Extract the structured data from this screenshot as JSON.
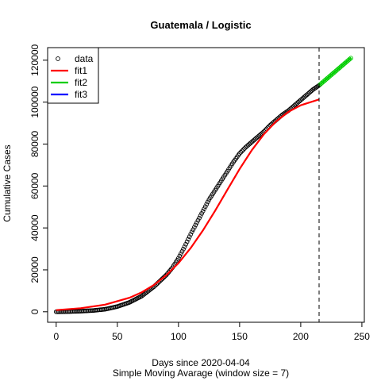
{
  "chart_data": {
    "type": "line",
    "title": "Guatemala / Logistic",
    "xlabel": "Days since 2020-04-04",
    "subtitle": "Simple Moving Avarage (window size = 7)",
    "ylabel": "Cumulative Cases",
    "xlim": [
      -7,
      252
    ],
    "ylim": [
      -5000,
      126000
    ],
    "xticks": [
      0,
      50,
      100,
      150,
      200,
      250
    ],
    "yticks": [
      0,
      20000,
      40000,
      60000,
      80000,
      100000,
      120000
    ],
    "split_day": 215,
    "legend": {
      "position": "top-left",
      "entries": [
        {
          "label": "data",
          "kind": "point",
          "color": "#000000"
        },
        {
          "label": "fit1",
          "kind": "line",
          "color": "#ff0000"
        },
        {
          "label": "fit2",
          "kind": "line",
          "color": "#00cd00"
        },
        {
          "label": "fit3",
          "kind": "line",
          "color": "#0000ff"
        }
      ]
    },
    "series": [
      {
        "name": "data",
        "kind": "points",
        "color": "#000000",
        "x": [
          0,
          10,
          20,
          30,
          40,
          50,
          60,
          70,
          80,
          90,
          95,
          100,
          105,
          110,
          115,
          120,
          125,
          130,
          135,
          140,
          145,
          150,
          155,
          160,
          165,
          170,
          175,
          180,
          185,
          190,
          195,
          200,
          205,
          210,
          215,
          220,
          225,
          230,
          235,
          241
        ],
        "y": [
          0,
          100,
          300,
          600,
          1200,
          2500,
          4500,
          7500,
          12000,
          17500,
          21000,
          25500,
          31000,
          37000,
          42500,
          48000,
          53500,
          58000,
          62500,
          67000,
          71500,
          75500,
          78500,
          81000,
          83500,
          86000,
          89000,
          91500,
          94000,
          96000,
          98500,
          101000,
          103500,
          106000,
          108000,
          110500,
          113000,
          115500,
          118000,
          121000
        ]
      },
      {
        "name": "fit1",
        "kind": "line",
        "color": "#ff0000",
        "x": [
          0,
          20,
          40,
          60,
          70,
          80,
          90,
          100,
          110,
          120,
          130,
          140,
          150,
          160,
          170,
          180,
          190,
          200,
          215
        ],
        "y": [
          800,
          1700,
          3400,
          6700,
          9300,
          12800,
          17400,
          23200,
          30400,
          38800,
          48200,
          58200,
          68100,
          77100,
          84800,
          90900,
          95400,
          98500,
          101300
        ]
      },
      {
        "name": "fit2",
        "kind": "line",
        "color": "#00cd00",
        "x": [
          215,
          241
        ],
        "y": [
          108000,
          121000
        ]
      }
    ]
  }
}
